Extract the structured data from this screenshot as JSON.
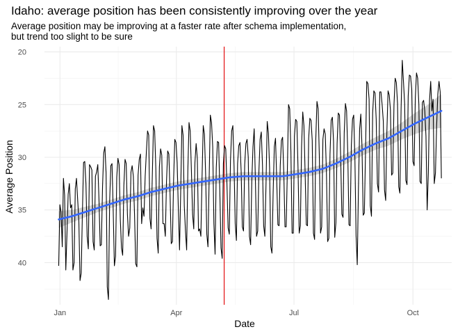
{
  "chart_data": {
    "type": "line",
    "title": "Idaho: average position has been consistently improving over the year",
    "subtitle": [
      "Average position may be improving at a faster rate after schema implementation,",
      "but trend too slight to be sure"
    ],
    "xlabel": "Date",
    "ylabel": "Average Position",
    "y_reversed": true,
    "ylim": [
      44,
      19.5
    ],
    "xlim": [
      "2020-12-20",
      "2021-10-31"
    ],
    "y_ticks": [
      20,
      25,
      30,
      35,
      40
    ],
    "y_tick_labels": [
      "20",
      "25",
      "30",
      "35",
      "40"
    ],
    "x_ticks": [
      "2021-01-01",
      "2021-04-01",
      "2021-07-01",
      "2021-10-01"
    ],
    "x_tick_labels": [
      "Jan",
      "Apr",
      "Jul",
      "Oct"
    ],
    "grid": true,
    "vline": {
      "date": "2021-05-08",
      "color": "#e41a1c"
    },
    "start_date": "2020-12-31",
    "end_date": "2021-10-23",
    "series": [
      {
        "role": "observed",
        "color": "#000000",
        "y": [
          40.3,
          34.5,
          35.2,
          38.5,
          32.0,
          33.6,
          40.7,
          37.2,
          33.5,
          32.5,
          34.8,
          34.5,
          40.7,
          40.0,
          33.0,
          32.0,
          34.0,
          36.0,
          41.7,
          41.0,
          35.3,
          30.5,
          30.4,
          32.5,
          37.5,
          38.7,
          30.7,
          30.9,
          31.2,
          38.0,
          38.8,
          31.8,
          31.4,
          30.7,
          34.0,
          38.4,
          38.3,
          32.8,
          29.6,
          29.0,
          31.5,
          42.3,
          43.5,
          34.2,
          30.8,
          30.6,
          35.0,
          40.3,
          39.4,
          31.9,
          30.1,
          30.7,
          35.9,
          38.6,
          39.3,
          32.7,
          30.2,
          30.6,
          35.4,
          37.5,
          36.7,
          31.4,
          30.8,
          31.8,
          35.4,
          40.1,
          40.4,
          31.7,
          30.2,
          29.7,
          36.3,
          34.8,
          35.6,
          31.8,
          29.5,
          27.5,
          27.9,
          35.8,
          36.8,
          31.8,
          27.0,
          27.5,
          31.1,
          37.7,
          39.1,
          30.9,
          29.2,
          29.8,
          36.3,
          36.3,
          37.5,
          32.3,
          29.4,
          29.7,
          33.5,
          38.2,
          38.0,
          32.1,
          28.3,
          28.6,
          30.5,
          35.0,
          38.8,
          33.1,
          27.0,
          27.9,
          34.6,
          37.0,
          38.8,
          31.3,
          26.7,
          27.5,
          31.2,
          35.4,
          36.8,
          30.5,
          28.7,
          30.1,
          37.0,
          36.8,
          37.5,
          31.9,
          27.0,
          27.8,
          31.5,
          37.3,
          38.5,
          32.0,
          26.0,
          26.7,
          29.0,
          36.3,
          39.2,
          31.0,
          28.5,
          28.6,
          33.2,
          38.6,
          39.6,
          30.6,
          28.9,
          29.2,
          32.5,
          36.7,
          37.3,
          30.3,
          27.5,
          27.0,
          30.8,
          36.3,
          37.9,
          30.6,
          28.9,
          28.6,
          31.3,
          36.6,
          37.0,
          30.7,
          28.7,
          28.3,
          30.0,
          37.5,
          38.3,
          32.2,
          29.0,
          27.3,
          32.0,
          37.5,
          37.0,
          31.3,
          28.3,
          27.6,
          30.7,
          36.5,
          37.5,
          32.5,
          26.6,
          27.7,
          31.0,
          38.5,
          39.1,
          33.4,
          29.0,
          28.2,
          32.0,
          36.4,
          36.5,
          30.8,
          28.4,
          28.1,
          31.5,
          36.6,
          36.6,
          31.3,
          25.0,
          25.4,
          29.5,
          37.2,
          37.2,
          28.0,
          26.4,
          26.6,
          31.0,
          37.2,
          36.5,
          29.0,
          25.7,
          27.0,
          31.5,
          36.4,
          36.5,
          28.2,
          26.3,
          26.5,
          28.4,
          37.2,
          37.8,
          28.3,
          24.7,
          25.4,
          29.9,
          37.2,
          36.6,
          28.3,
          27.3,
          27.8,
          31.5,
          38.0,
          37.7,
          29.7,
          26.5,
          26.2,
          28.5,
          37.6,
          36.2,
          28.7,
          25.8,
          26.0,
          30.0,
          35.4,
          35.7,
          27.7,
          24.9,
          25.6,
          29.6,
          36.4,
          36.5,
          28.9,
          26.4,
          26.0,
          30.0,
          37.4,
          40.2,
          33.0,
          27.3,
          25.9,
          29.0,
          35.5,
          35.3,
          29.4,
          22.8,
          23.0,
          24.5,
          34.6,
          35.6,
          25.8,
          23.7,
          23.9,
          26.4,
          32.5,
          33.3,
          23.8,
          23.8,
          25.0,
          26.6,
          33.1,
          34.1,
          27.6,
          23.7,
          24.1,
          25.5,
          31.7,
          31.5,
          25.0,
          22.5,
          22.9,
          24.9,
          32.8,
          33.4,
          25.4,
          20.8,
          22.8,
          24.9,
          32.2,
          32.6,
          24.2,
          22.2,
          22.3,
          23.6,
          30.4,
          30.8,
          24.4,
          22.0,
          22.5,
          25.0,
          32.3,
          32.5,
          24.8,
          24.6,
          25.6,
          28.0,
          35.0,
          31.5,
          24.6,
          22.8,
          25.6,
          24.5,
          32.5,
          31.5,
          27.0,
          24.0,
          22.8,
          23.8,
          32.0
        ]
      },
      {
        "role": "trend",
        "color": "#3366ff",
        "band_color": "#cccccc",
        "y": [
          35.9,
          35.6,
          35.2,
          34.8,
          34.4,
          34.0,
          33.7,
          33.3,
          33.0,
          32.7,
          32.5,
          32.3,
          32.1,
          31.9,
          31.8,
          31.8,
          31.8,
          31.8,
          31.6,
          31.4,
          31.1,
          30.6,
          30.0,
          29.3,
          28.7,
          28.2,
          27.5,
          26.8,
          26.2,
          25.6
        ],
        "band_halfwidth": [
          0.8,
          0.6,
          0.5,
          0.4,
          0.4,
          0.4,
          0.4,
          0.4,
          0.4,
          0.4,
          0.4,
          0.4,
          0.4,
          0.4,
          0.4,
          0.4,
          0.4,
          0.4,
          0.4,
          0.4,
          0.4,
          0.45,
          0.5,
          0.55,
          0.6,
          0.7,
          0.8,
          1.0,
          1.2,
          1.6
        ]
      }
    ]
  }
}
